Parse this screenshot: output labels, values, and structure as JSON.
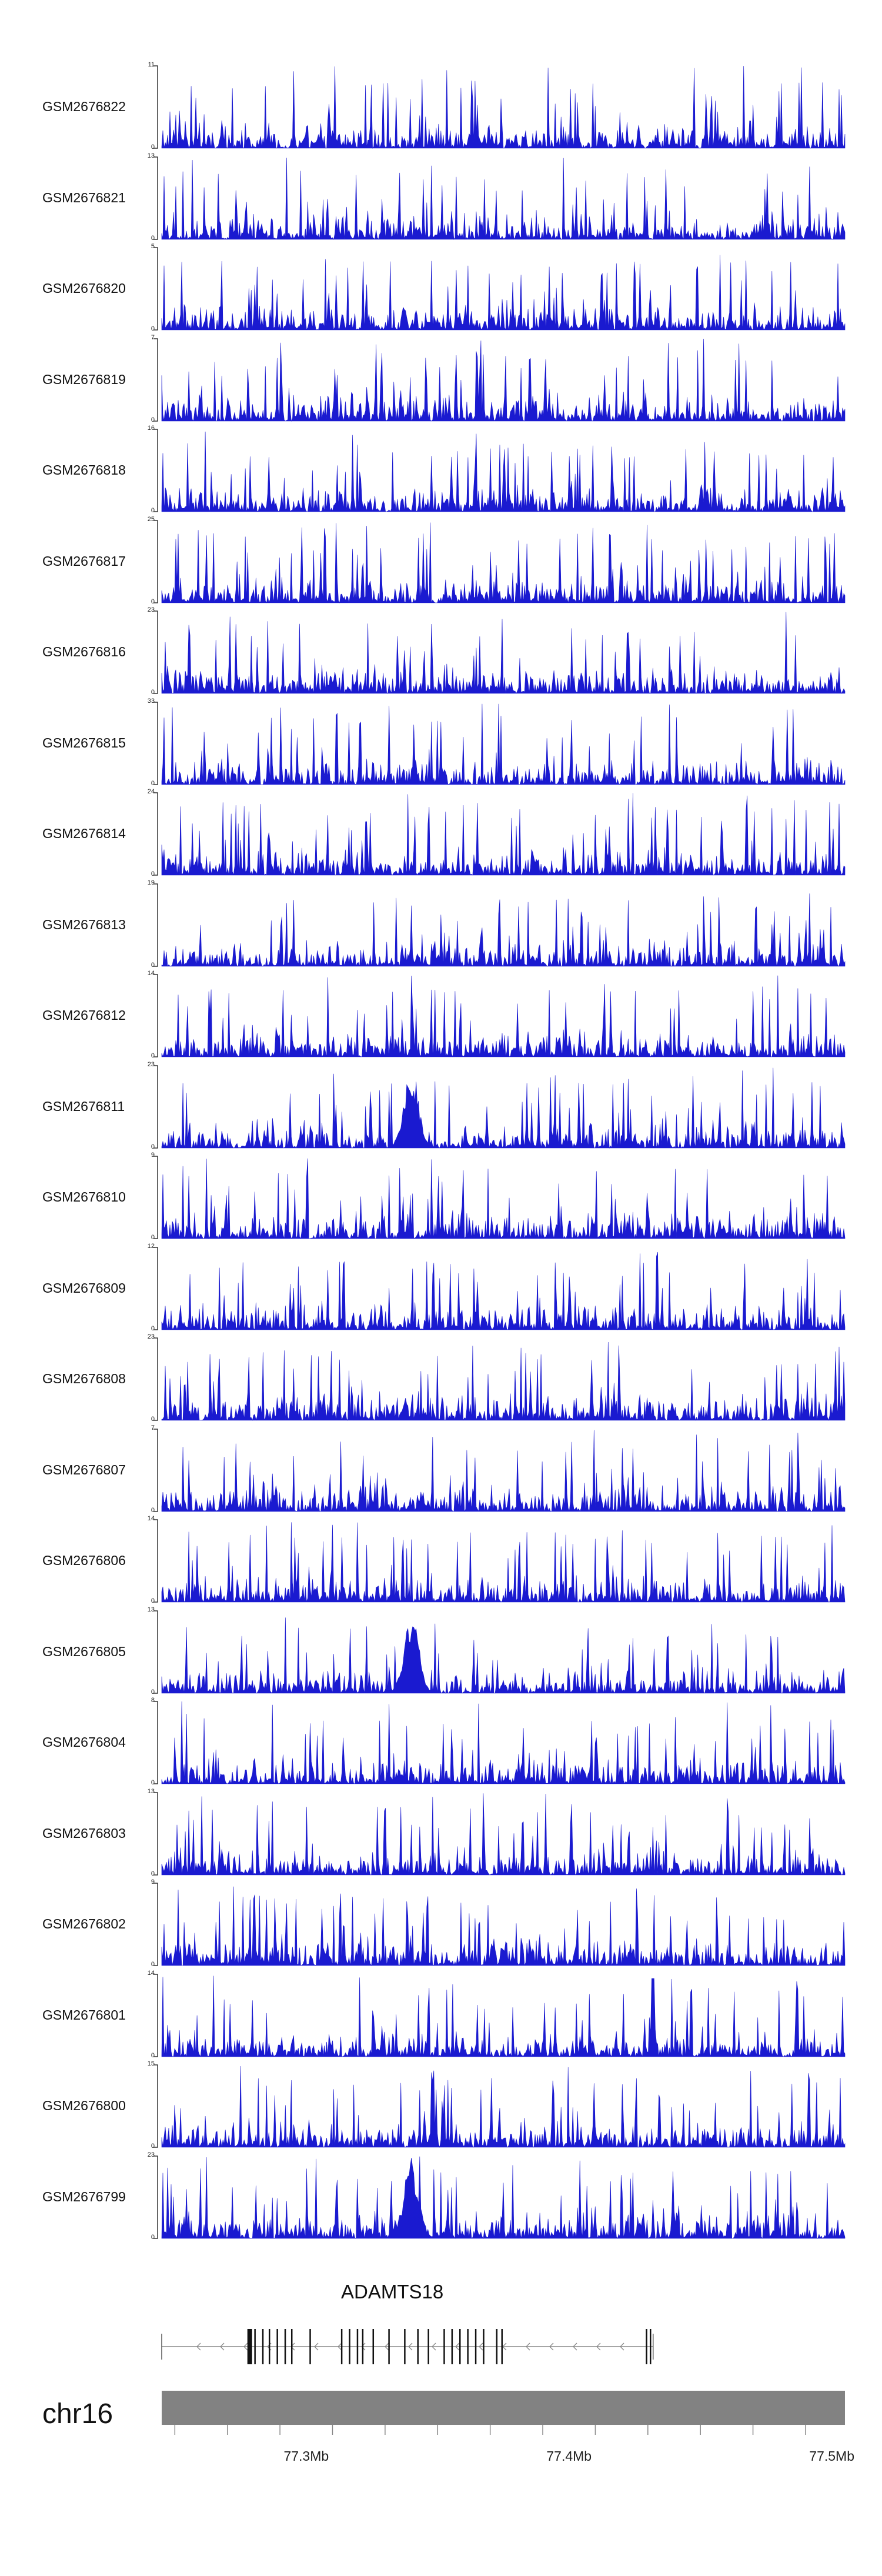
{
  "chart_data": {
    "type": "area",
    "tracks": [
      {
        "name": "GSM2676822",
        "ymax": "11",
        "ymin": "0",
        "peak": 11
      },
      {
        "name": "GSM2676821",
        "ymax": "13",
        "ymin": "0",
        "peak": 13
      },
      {
        "name": "GSM2676820",
        "ymax": "5",
        "ymin": "0",
        "peak": 5
      },
      {
        "name": "GSM2676819",
        "ymax": "7",
        "ymin": "0",
        "peak": 7
      },
      {
        "name": "GSM2676818",
        "ymax": "16",
        "ymin": "0",
        "peak": 16
      },
      {
        "name": "GSM2676817",
        "ymax": "25",
        "ymin": "0",
        "peak": 25
      },
      {
        "name": "GSM2676816",
        "ymax": "23",
        "ymin": "0",
        "peak": 23
      },
      {
        "name": "GSM2676815",
        "ymax": "33",
        "ymin": "0",
        "peak": 33
      },
      {
        "name": "GSM2676814",
        "ymax": "24",
        "ymin": "0",
        "peak": 24
      },
      {
        "name": "GSM2676813",
        "ymax": "19",
        "ymin": "0",
        "peak": 19
      },
      {
        "name": "GSM2676812",
        "ymax": "14",
        "ymin": "0",
        "peak": 14
      },
      {
        "name": "GSM2676811",
        "ymax": "23",
        "ymin": "0",
        "peak": 23
      },
      {
        "name": "GSM2676810",
        "ymax": "9",
        "ymin": "0",
        "peak": 9
      },
      {
        "name": "GSM2676809",
        "ymax": "12",
        "ymin": "0",
        "peak": 12
      },
      {
        "name": "GSM2676808",
        "ymax": "23",
        "ymin": "0",
        "peak": 23
      },
      {
        "name": "GSM2676807",
        "ymax": "7",
        "ymin": "0",
        "peak": 7
      },
      {
        "name": "GSM2676806",
        "ymax": "14",
        "ymin": "0",
        "peak": 14
      },
      {
        "name": "GSM2676805",
        "ymax": "13",
        "ymin": "0",
        "peak": 13
      },
      {
        "name": "GSM2676804",
        "ymax": "8",
        "ymin": "0",
        "peak": 8
      },
      {
        "name": "GSM2676803",
        "ymax": "13",
        "ymin": "0",
        "peak": 13
      },
      {
        "name": "GSM2676802",
        "ymax": "9",
        "ymin": "0",
        "peak": 9
      },
      {
        "name": "GSM2676801",
        "ymax": "14",
        "ymin": "0",
        "peak": 14
      },
      {
        "name": "GSM2676800",
        "ymax": "15",
        "ymin": "0",
        "peak": 15
      },
      {
        "name": "GSM2676799",
        "ymax": "23",
        "ymin": "0",
        "peak": 23
      }
    ],
    "color": "#1a1ad0",
    "xlim": [
      77.245,
      77.505
    ],
    "x_ticks": [
      {
        "value": 77.3,
        "label": "77.3Mb"
      },
      {
        "value": 77.4,
        "label": "77.4Mb"
      },
      {
        "value": 77.5,
        "label": "77.5Mb"
      }
    ],
    "gene": {
      "name": "ADAMTS18",
      "strand": "-",
      "start": 77.245,
      "end": 77.432,
      "exons": [
        77.2785,
        77.2805,
        77.2835,
        77.286,
        77.289,
        77.292,
        77.2945,
        77.3015,
        77.3135,
        77.3165,
        77.3195,
        77.3215,
        77.3255,
        77.3315,
        77.3375,
        77.3425,
        77.3465,
        77.3525,
        77.3555,
        77.3585,
        77.3615,
        77.3645,
        77.3675,
        77.3725,
        77.3745,
        77.4295,
        77.431
      ]
    },
    "chromosome": "chr16",
    "grid": false
  }
}
